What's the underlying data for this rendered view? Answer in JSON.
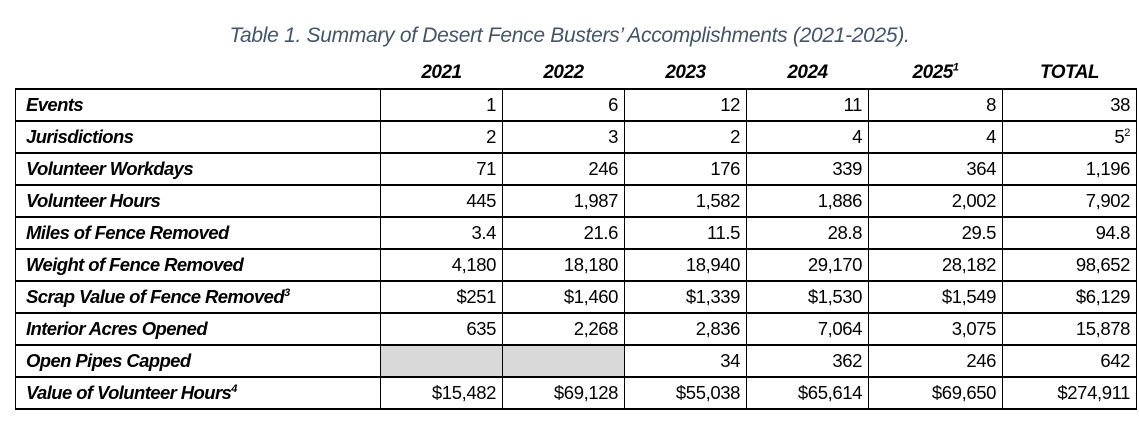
{
  "caption": "Table 1. Summary of Desert Fence Busters’ Accomplishments (2021-2025).",
  "columns": [
    {
      "label": "2021",
      "footnote": ""
    },
    {
      "label": "2022",
      "footnote": ""
    },
    {
      "label": "2023",
      "footnote": ""
    },
    {
      "label": "2024",
      "footnote": ""
    },
    {
      "label": "2025",
      "footnote": "1"
    },
    {
      "label": "TOTAL",
      "footnote": ""
    }
  ],
  "rows": [
    {
      "label": "Events",
      "footnote": "",
      "values": [
        "1",
        "6",
        "12",
        "11",
        "8",
        "38"
      ]
    },
    {
      "label": "Jurisdictions",
      "footnote": "",
      "values": [
        "2",
        "3",
        "2",
        "4",
        "4",
        "5"
      ],
      "value_footnotes": [
        "",
        "",
        "",
        "",
        "",
        "2"
      ]
    },
    {
      "label": "Volunteer Workdays",
      "footnote": "",
      "values": [
        "71",
        "246",
        "176",
        "339",
        "364",
        "1,196"
      ]
    },
    {
      "label": "Volunteer Hours",
      "footnote": "",
      "values": [
        "445",
        "1,987",
        "1,582",
        "1,886",
        "2,002",
        "7,902"
      ]
    },
    {
      "label": "Miles of Fence Removed",
      "footnote": "",
      "values": [
        "3.4",
        "21.6",
        "11.5",
        "28.8",
        "29.5",
        "94.8"
      ]
    },
    {
      "label": "Weight of Fence Removed",
      "footnote": "",
      "values": [
        "4,180",
        "18,180",
        "18,940",
        "29,170",
        "28,182",
        "98,652"
      ]
    },
    {
      "label": "Scrap Value of Fence Removed",
      "footnote": "3",
      "values": [
        "$251",
        "$1,460",
        "$1,339",
        "$1,530",
        "$1,549",
        "$6,129"
      ]
    },
    {
      "label": "Interior Acres Opened",
      "footnote": "",
      "values": [
        "635",
        "2,268",
        "2,836",
        "7,064",
        "3,075",
        "15,878"
      ]
    },
    {
      "label": "Open Pipes Capped",
      "footnote": "",
      "values": [
        null,
        null,
        "34",
        "362",
        "246",
        "642"
      ]
    },
    {
      "label": "Value of Volunteer Hours",
      "footnote": "4",
      "values": [
        "$15,482",
        "$69,128",
        "$55,038",
        "$65,614",
        "$69,650",
        "$274,911"
      ]
    }
  ],
  "colors": {
    "caption": "#44546a",
    "shaded_cell": "#d9d9d9"
  }
}
